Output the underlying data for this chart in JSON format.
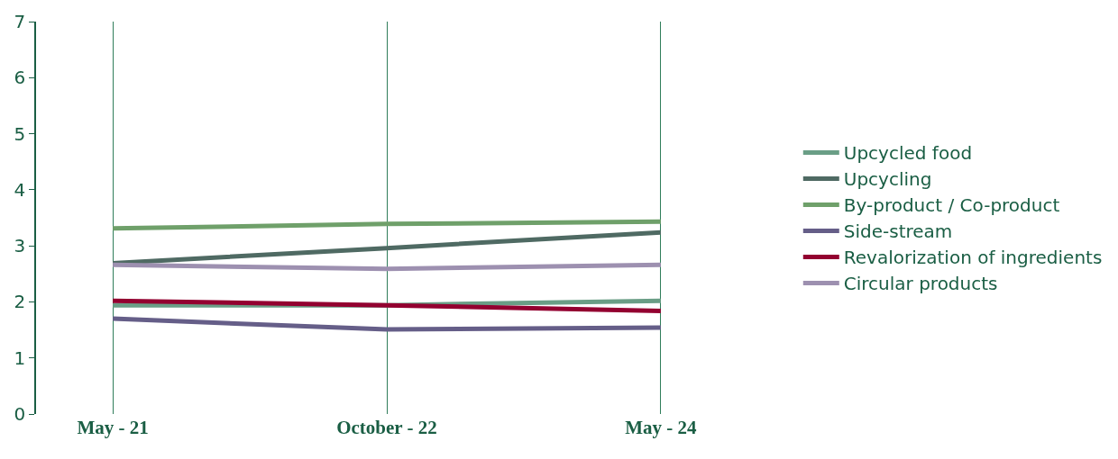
{
  "chart_data": {
    "type": "line",
    "categories": [
      "May - 21",
      "October - 22",
      "May - 24"
    ],
    "series": [
      {
        "name": "Upcycled food",
        "color": "#6a9e86",
        "values": [
          1.94,
          1.94,
          2.02
        ]
      },
      {
        "name": "Upcycling",
        "color": "#4f6a63",
        "values": [
          2.69,
          2.96,
          3.24
        ]
      },
      {
        "name": "By-product / Co-product",
        "color": "#6fa06a",
        "values": [
          3.31,
          3.39,
          3.43
        ]
      },
      {
        "name": "Side-stream",
        "color": "#655e88",
        "values": [
          1.7,
          1.51,
          1.54
        ]
      },
      {
        "name": "Revalorization of ingredients",
        "color": "#930030",
        "values": [
          2.02,
          1.94,
          1.84
        ]
      },
      {
        "name": "Circular products",
        "color": "#9d90b0",
        "values": [
          2.66,
          2.59,
          2.66
        ]
      }
    ],
    "ylim": [
      0,
      7
    ],
    "yticks": [
      0,
      1,
      2,
      3,
      4,
      5,
      6,
      7
    ],
    "grid": "x",
    "legend": "right",
    "marker": "none",
    "line_style": "solid"
  }
}
